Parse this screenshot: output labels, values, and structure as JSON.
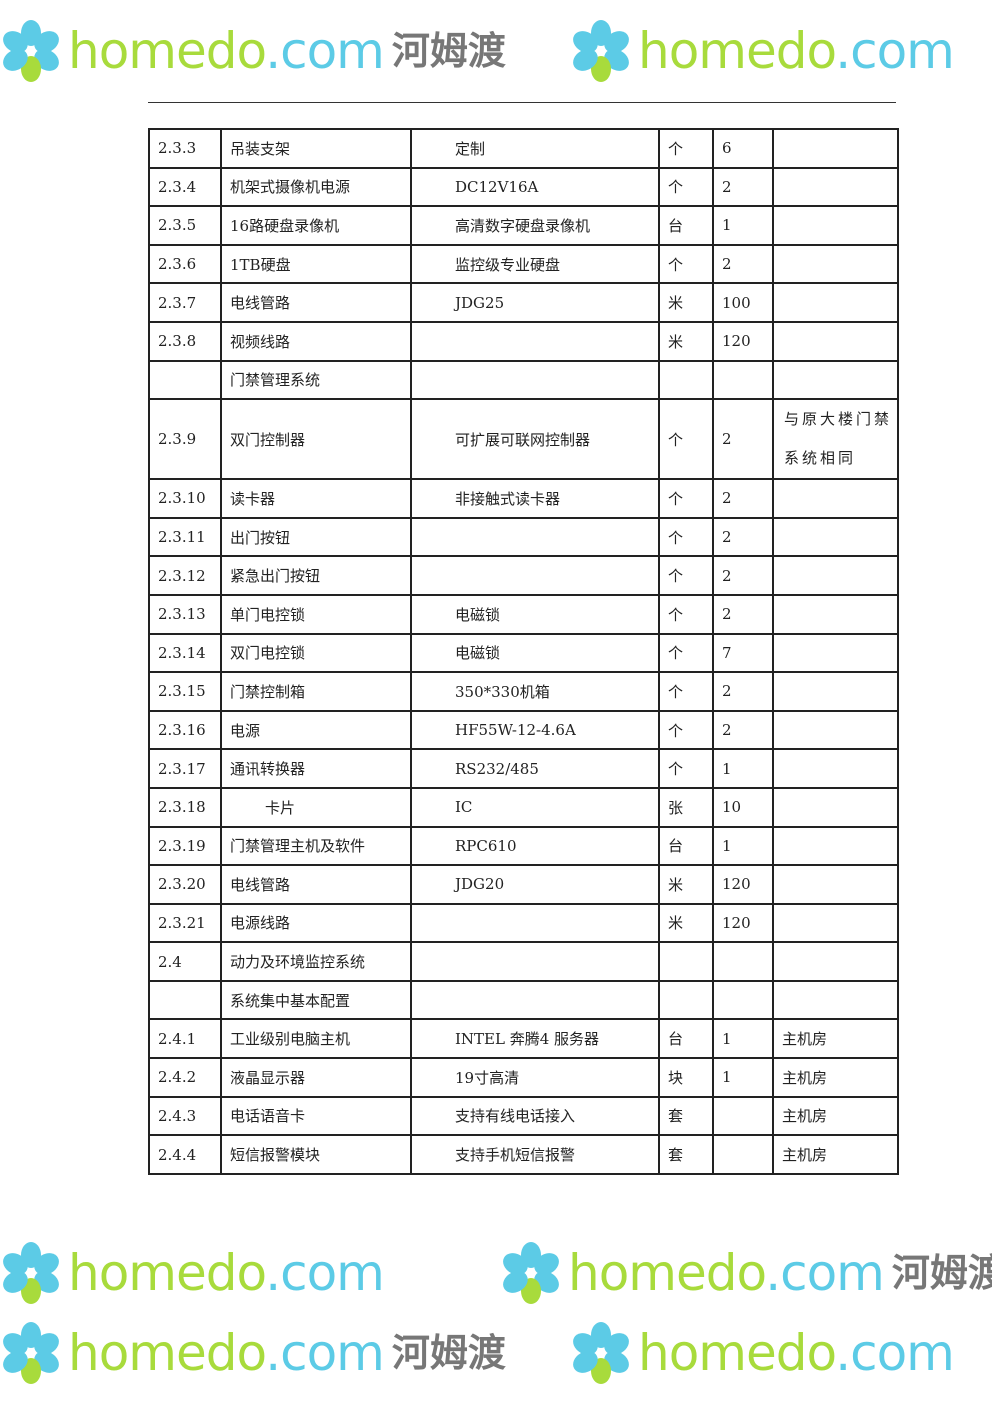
{
  "table": {
    "rows": [
      {
        "no": "2.3.3",
        "name": "吊装支架",
        "spec": "定制",
        "unit": "个",
        "qty": "6",
        "note": ""
      },
      {
        "no": "2.3.4",
        "name": "机架式摄像机电源",
        "spec": "DC12V16A",
        "unit": "个",
        "qty": "2",
        "note": ""
      },
      {
        "no": "2.3.5",
        "name": "16路硬盘录像机",
        "spec": "高清数字硬盘录像机",
        "unit": "台",
        "qty": "1",
        "note": ""
      },
      {
        "no": "2.3.6",
        "name": "1TB硬盘",
        "spec": "监控级专业硬盘",
        "unit": "个",
        "qty": "2",
        "note": ""
      },
      {
        "no": "2.3.7",
        "name": "电线管路",
        "spec": "JDG25",
        "unit": "米",
        "qty": "100",
        "note": ""
      },
      {
        "no": "2.3.8",
        "name": "视频线路",
        "spec": "",
        "unit": "米",
        "qty": "120",
        "note": ""
      },
      {
        "no": "",
        "name": "门禁管理系统",
        "spec": "",
        "unit": "",
        "qty": "",
        "note": ""
      },
      {
        "no": "2.3.9",
        "name": "双门控制器",
        "spec": "可扩展可联网控制器",
        "unit": "个",
        "qty": "2",
        "note": "与原大楼门禁系统相同"
      },
      {
        "no": "2.3.10",
        "name": "读卡器",
        "spec": "非接触式读卡器",
        "unit": "个",
        "qty": "2",
        "note": ""
      },
      {
        "no": "2.3.11",
        "name": "出门按钮",
        "spec": "",
        "unit": "个",
        "qty": "2",
        "note": ""
      },
      {
        "no": "2.3.12",
        "name": "紧急出门按钮",
        "spec": "",
        "unit": "个",
        "qty": "2",
        "note": ""
      },
      {
        "no": "2.3.13",
        "name": "单门电控锁",
        "spec": "电磁锁",
        "unit": "个",
        "qty": "2",
        "note": ""
      },
      {
        "no": "2.3.14",
        "name": "双门电控锁",
        "spec": "电磁锁",
        "unit": "个",
        "qty": "7",
        "note": ""
      },
      {
        "no": "2.3.15",
        "name": "门禁控制箱",
        "spec": "350*330机箱",
        "unit": "个",
        "qty": "2",
        "note": ""
      },
      {
        "no": "2.3.16",
        "name": "电源",
        "spec": "HF55W-12-4.6A",
        "unit": "个",
        "qty": "2",
        "note": ""
      },
      {
        "no": "2.3.17",
        "name": "通讯转换器",
        "spec": "RS232/485",
        "unit": "个",
        "qty": "1",
        "note": ""
      },
      {
        "no": "2.3.18",
        "name": "卡片",
        "spec": "IC",
        "unit": "张",
        "qty": "10",
        "note": ""
      },
      {
        "no": "2.3.19",
        "name": "门禁管理主机及软件",
        "spec": "RPC610",
        "unit": "台",
        "qty": "1",
        "note": ""
      },
      {
        "no": "2.3.20",
        "name": "电线管路",
        "spec": "JDG20",
        "unit": "米",
        "qty": "120",
        "note": ""
      },
      {
        "no": "2.3.21",
        "name": "电源线路",
        "spec": "",
        "unit": "米",
        "qty": "120",
        "note": ""
      },
      {
        "no": "2.4",
        "name": "动力及环境监控系统",
        "spec": "",
        "unit": "",
        "qty": "",
        "note": ""
      },
      {
        "no": "",
        "name": "系统集中基本配置",
        "spec": "",
        "unit": "",
        "qty": "",
        "note": ""
      },
      {
        "no": "2.4.1",
        "name": "工业级别电脑主机",
        "spec": "INTEL 奔腾4 服务器",
        "unit": "台",
        "qty": "1",
        "note": "主机房"
      },
      {
        "no": "2.4.2",
        "name": "液晶显示器",
        "spec": "19寸高清",
        "unit": "块",
        "qty": "1",
        "note": "主机房"
      },
      {
        "no": "2.4.3",
        "name": "电话语音卡",
        "spec": "支持有线电话接入",
        "unit": "套",
        "qty": "",
        "note": "主机房"
      },
      {
        "no": "2.4.4",
        "name": "短信报警模块",
        "spec": "支持手机短信报警",
        "unit": "套",
        "qty": "",
        "note": "主机房"
      }
    ]
  },
  "watermark": {
    "en_a": "home",
    "en_b": "do",
    "dot_com": ".com",
    "cn": "河姆渡"
  },
  "colors": {
    "watermark_green": "#a8db3c",
    "watermark_blue": "#5ccbe6"
  }
}
